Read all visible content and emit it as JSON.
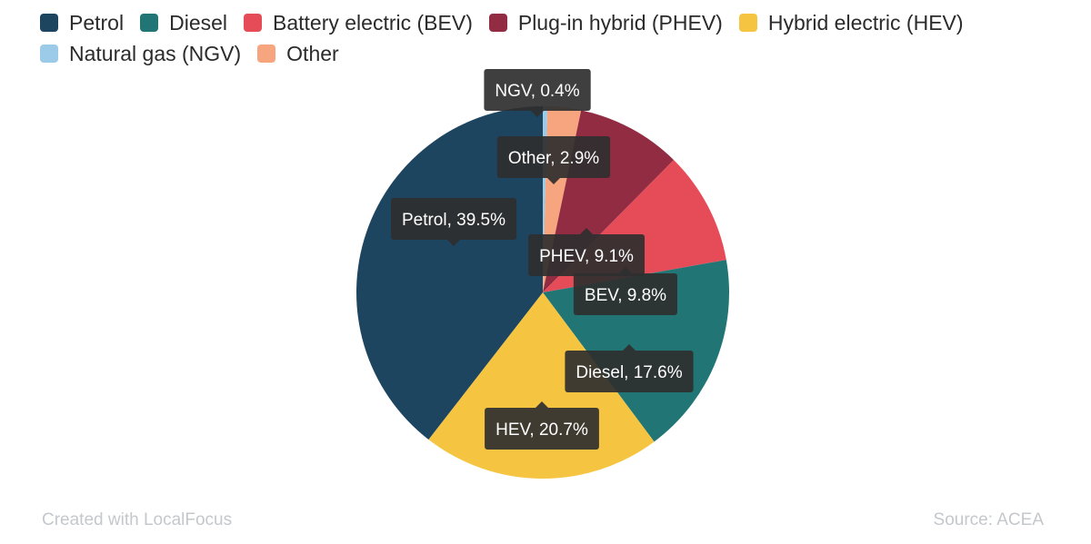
{
  "chart_data": {
    "type": "pie",
    "series": [
      {
        "name": "Petrol",
        "short": "Petrol",
        "value": 39.5,
        "color": "#1e4560"
      },
      {
        "name": "Diesel",
        "short": "Diesel",
        "value": 17.6,
        "color": "#217675"
      },
      {
        "name": "Battery electric (BEV)",
        "short": "BEV",
        "value": 9.8,
        "color": "#e64b58"
      },
      {
        "name": "Plug-in hybrid (PHEV)",
        "short": "PHEV",
        "value": 9.1,
        "color": "#922c42"
      },
      {
        "name": "Hybrid electric (HEV)",
        "short": "HEV",
        "value": 20.7,
        "color": "#f5c542"
      },
      {
        "name": "Natural gas (NGV)",
        "short": "NGV",
        "value": 0.4,
        "color": "#9bcbe9"
      },
      {
        "name": "Other",
        "short": "Other",
        "value": 2.9,
        "color": "#f7a57e"
      }
    ],
    "slice_order": [
      "NGV",
      "Other",
      "PHEV",
      "BEV",
      "Diesel",
      "HEV",
      "Petrol"
    ],
    "legend_position": "top-left",
    "label_format": "{short}, {value}%"
  },
  "footer": {
    "credit": "Created with LocalFocus",
    "source": "Source:  ACEA"
  }
}
